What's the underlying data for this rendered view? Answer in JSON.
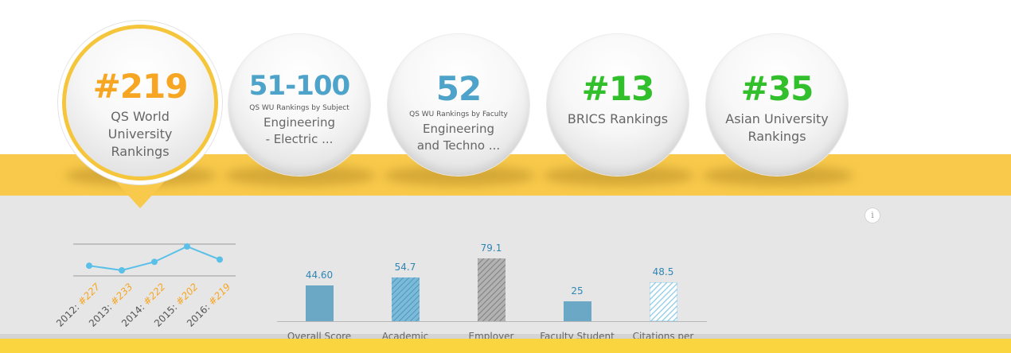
{
  "rankings": [
    {
      "rank": "#219",
      "title": "QS World University Rankings",
      "subtitle": "",
      "color": "#f6a623",
      "active": true
    },
    {
      "rank": "51-100",
      "title": "Engineering - Electric ...",
      "subtitle": "QS WU Rankings by Subject",
      "color": "#4da3c9",
      "active": false
    },
    {
      "rank": "52",
      "title": "Engineering and Techno ...",
      "subtitle": "QS WU Rankings by Faculty",
      "color": "#4da3c9",
      "active": false
    },
    {
      "rank": "#13",
      "title": "BRICS Rankings",
      "subtitle": "",
      "color": "#31c02b",
      "active": false
    },
    {
      "rank": "#35",
      "title": "Asian University Rankings",
      "subtitle": "",
      "color": "#31c02b",
      "active": false
    }
  ],
  "info_icon": {
    "glyph": "i"
  },
  "chart_data": [
    {
      "type": "line",
      "x": [
        "2012",
        "2013",
        "2014",
        "2015",
        "2016"
      ],
      "series": [
        {
          "values": [
            227,
            233,
            222,
            202,
            219
          ]
        }
      ],
      "point_labels": [
        {
          "year": "2012:",
          "rank": "#227"
        },
        {
          "year": "2013:",
          "rank": "#233"
        },
        {
          "year": "2014:",
          "rank": "#222"
        },
        {
          "year": "2015:",
          "rank": "#202"
        },
        {
          "year": "2016:",
          "rank": "#219"
        }
      ],
      "y_inverted": true,
      "color": "#5bc0e8"
    },
    {
      "type": "bar",
      "categories": [
        "Overall Score",
        "Academic",
        "Employer",
        "Faculty Student",
        "Citations per"
      ],
      "values": [
        44.6,
        54.7,
        79.1,
        25,
        48.5
      ],
      "value_labels": [
        "44.60",
        "54.7",
        "79.1",
        "25",
        "48.5"
      ],
      "ylim": [
        0,
        100
      ],
      "bar_styles": [
        "solid-blue",
        "hatched-blue",
        "hatched-gray",
        "solid-blue",
        "hatched-light-blue"
      ],
      "colors": {
        "blue": "#6aa8c6",
        "light_blue": "#8cc9e6",
        "gray": "#9e9e9e",
        "value_text": "#2f86b3"
      }
    }
  ]
}
